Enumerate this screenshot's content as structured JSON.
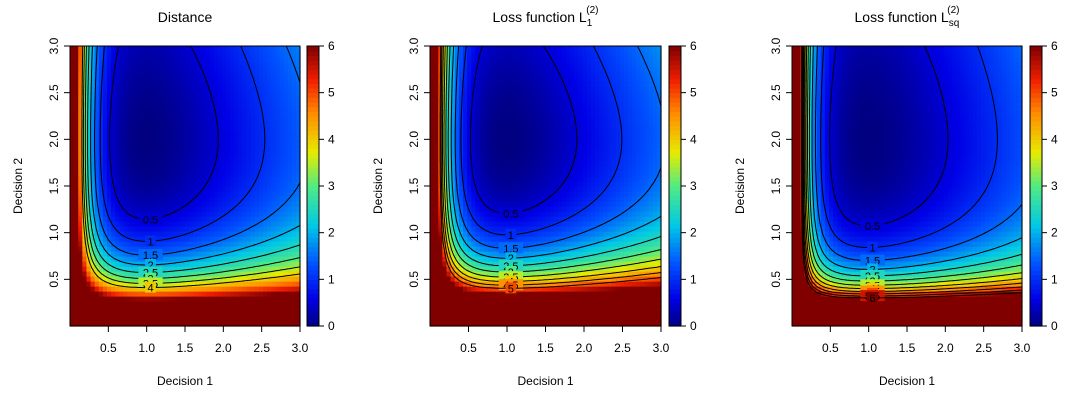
{
  "chart_data": [
    {
      "type": "heatmap",
      "title": "Distance",
      "title_sup": "",
      "title_sub": "",
      "xlabel": "Decision 1",
      "ylabel": "Decision 2",
      "xlim": [
        0.0,
        3.0
      ],
      "ylim": [
        0.0,
        3.0
      ],
      "x_ticks": [
        "0.5",
        "1.0",
        "1.5",
        "2.0",
        "2.5",
        "3.0"
      ],
      "y_ticks": [
        "0.5",
        "1.0",
        "1.5",
        "2.0",
        "2.5",
        "3.0"
      ],
      "minimum": {
        "x": 1.0,
        "y": 2.0,
        "value": 0.0
      },
      "contours": [
        {
          "level": 0.5,
          "label": "0.5"
        },
        {
          "level": 1.0,
          "label": "1"
        },
        {
          "level": 1.5,
          "label": "1.5"
        },
        {
          "level": 2.0,
          "label": "2"
        },
        {
          "level": 2.5,
          "label": "2.5"
        },
        {
          "level": 3.0,
          "label": "3"
        },
        {
          "level": 3.5,
          "label": "3.5"
        },
        {
          "level": 4.0,
          "label": "4"
        }
      ],
      "colorbar": {
        "min": 0,
        "max": 6,
        "ticks": [
          "0",
          "1",
          "2",
          "3",
          "4",
          "5",
          "6"
        ]
      }
    },
    {
      "type": "heatmap",
      "title": "Loss function L",
      "title_sup": "(2)",
      "title_sub": "1",
      "xlabel": "Decision 1",
      "ylabel": "Decision 2",
      "xlim": [
        0.0,
        3.0
      ],
      "ylim": [
        0.0,
        3.0
      ],
      "x_ticks": [
        "0.5",
        "1.0",
        "1.5",
        "2.0",
        "2.5",
        "3.0"
      ],
      "y_ticks": [
        "0.5",
        "1.0",
        "1.5",
        "2.0",
        "2.5",
        "3.0"
      ],
      "minimum": {
        "x": 1.0,
        "y": 2.0,
        "value": 0.0
      },
      "contours": [
        {
          "level": 0.5,
          "label": "0.5"
        },
        {
          "level": 1.0,
          "label": "1"
        },
        {
          "level": 1.5,
          "label": "1.5"
        },
        {
          "level": 2.0,
          "label": "2"
        },
        {
          "level": 2.5,
          "label": "2.5"
        },
        {
          "level": 3.0,
          "label": "3"
        },
        {
          "level": 3.5,
          "label": "3.5"
        },
        {
          "level": 4.0,
          "label": "4"
        },
        {
          "level": 4.5,
          "label": "4.5"
        },
        {
          "level": 5.0,
          "label": "5"
        }
      ],
      "colorbar": {
        "min": 0,
        "max": 6,
        "ticks": [
          "0",
          "1",
          "2",
          "3",
          "4",
          "5",
          "6"
        ]
      }
    },
    {
      "type": "heatmap",
      "title": "Loss function L",
      "title_sup": "(2)",
      "title_sub": "sq",
      "xlabel": "Decision 1",
      "ylabel": "Decision 2",
      "xlim": [
        0.0,
        3.0
      ],
      "ylim": [
        0.0,
        3.0
      ],
      "x_ticks": [
        "0.5",
        "1.0",
        "1.5",
        "2.0",
        "2.5",
        "3.0"
      ],
      "y_ticks": [
        "0.5",
        "1.0",
        "1.5",
        "2.0",
        "2.5",
        "3.0"
      ],
      "minimum": {
        "x": 1.0,
        "y": 2.0,
        "value": 0.0
      },
      "contours": [
        {
          "level": 0.5,
          "label": "0.5"
        },
        {
          "level": 1.0,
          "label": "1"
        },
        {
          "level": 1.5,
          "label": "1.5"
        },
        {
          "level": 2.0,
          "label": "2"
        },
        {
          "level": 2.5,
          "label": "2.5"
        },
        {
          "level": 3.0,
          "label": "3"
        },
        {
          "level": 3.5,
          "label": "3.5"
        },
        {
          "level": 4.0,
          "label": "4"
        },
        {
          "level": 4.5,
          "label": "4.5"
        },
        {
          "level": 5.0,
          "label": "5"
        },
        {
          "level": 5.5,
          "label": "5.5"
        },
        {
          "level": 6.0,
          "label": "6"
        }
      ],
      "colorbar": {
        "min": 0,
        "max": 6,
        "ticks": [
          "0",
          "1",
          "2",
          "3",
          "4",
          "5",
          "6"
        ]
      }
    }
  ]
}
